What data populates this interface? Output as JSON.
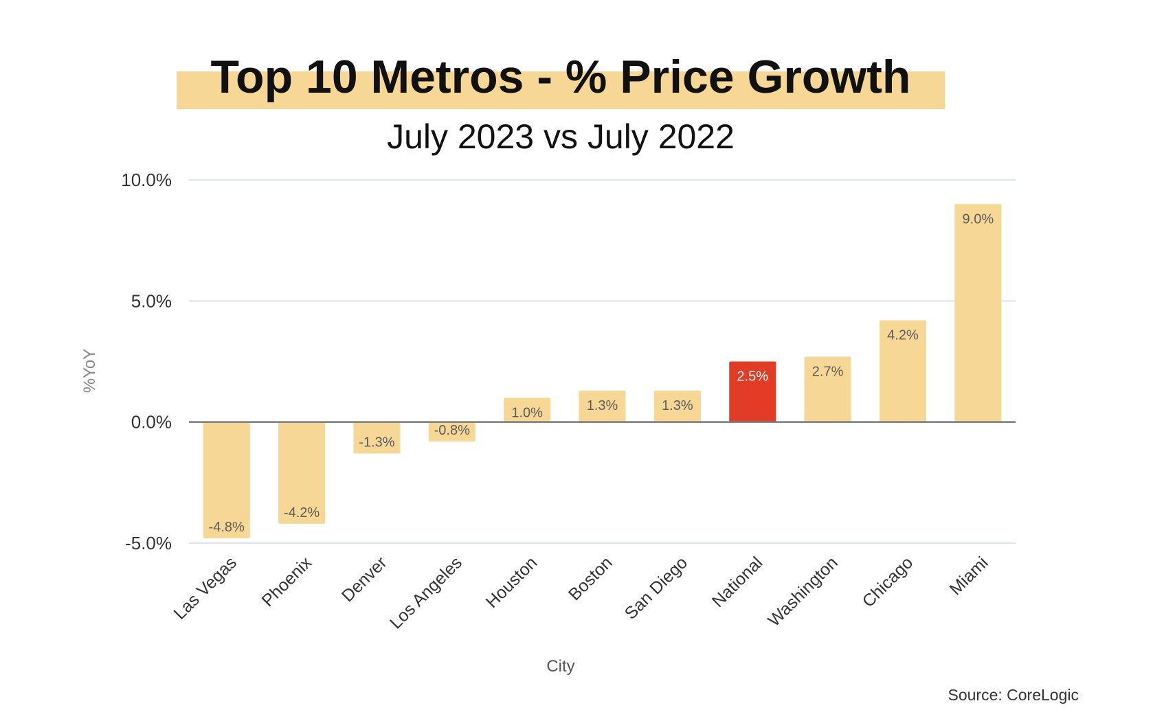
{
  "chart_data": {
    "type": "bar",
    "title": "Top 10 Metros - % Price Growth",
    "subtitle": "July 2023 vs July 2022",
    "xlabel": "City",
    "ylabel": "%YoY",
    "categories": [
      "Las Vegas",
      "Phoenix",
      "Denver",
      "Los Angeles",
      "Houston",
      "Boston",
      "San Diego",
      "National",
      "Washington",
      "Chicago",
      "Miami"
    ],
    "values": [
      -4.8,
      -4.2,
      -1.3,
      -0.8,
      1.0,
      1.3,
      1.3,
      2.5,
      2.7,
      4.2,
      9.0
    ],
    "value_labels": [
      "-4.8%",
      "-4.2%",
      "-1.3%",
      "-0.8%",
      "1.0%",
      "1.3%",
      "1.3%",
      "2.5%",
      "2.7%",
      "4.2%",
      "9.0%"
    ],
    "highlight_category": "National",
    "ylim": [
      -5,
      10
    ],
    "yticks": [
      -5,
      0,
      5,
      10
    ],
    "ytick_labels": [
      "-5.0%",
      "0.0%",
      "5.0%",
      "10.0%"
    ],
    "grid": true,
    "legend": "none",
    "source": "Source: CoreLogic",
    "colors": {
      "bar": "#f6d796",
      "highlight": "#e23b26",
      "title_band": "#f6d796",
      "grid": "#dde3ea",
      "zero_line": "#7a7a7a",
      "label_dark": "#5c5c5c",
      "label_light": "#ffffff",
      "text": "#111111",
      "axis_text": "#333333",
      "muted_text": "#888888"
    }
  }
}
